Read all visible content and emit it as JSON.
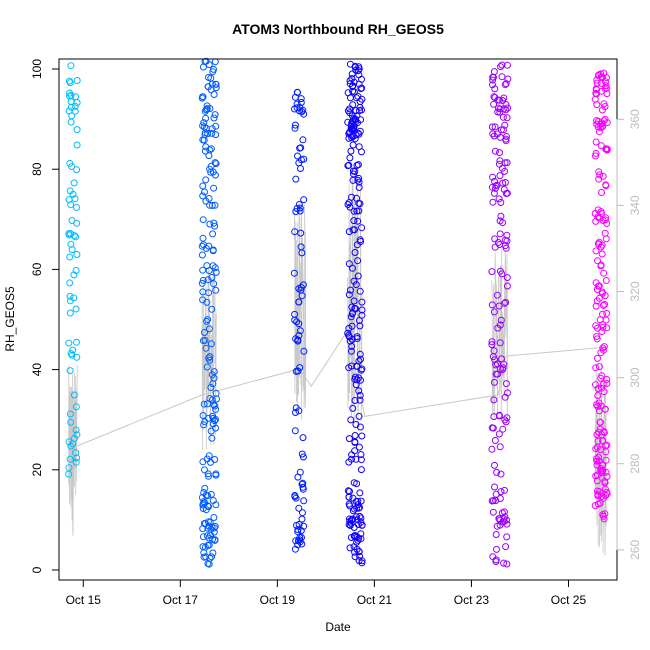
{
  "chart_data": {
    "type": "scatter",
    "title": "ATOM3 Northbound RH_GEOS5",
    "xlabel": "Date",
    "ylabel": "RH_GEOS5",
    "x_axis": {
      "unit": "day of October 2017",
      "range": [
        14.5,
        26.0
      ],
      "ticks": [
        15,
        17,
        19,
        21,
        23,
        25
      ],
      "tick_labels": [
        "Oct 15",
        "Oct 17",
        "Oct 19",
        "Oct 21",
        "Oct 23",
        "Oct 25"
      ]
    },
    "y_axis": {
      "range": [
        -2,
        102
      ],
      "ticks": [
        0,
        20,
        40,
        60,
        80,
        100
      ],
      "tick_labels": [
        "0",
        "20",
        "40",
        "60",
        "80",
        "100"
      ]
    },
    "y2_axis": {
      "range": [
        253,
        374
      ],
      "ticks": [
        260,
        280,
        300,
        320,
        340,
        360
      ],
      "tick_labels": [
        "260",
        "280",
        "300",
        "320",
        "340",
        "360"
      ],
      "color": "#bdbdbd"
    },
    "grid": false,
    "legend": "none",
    "marker": "open-circle",
    "color_gradient": [
      "#00bfff",
      "#0000ff",
      "#ff00ff"
    ],
    "segments": [
      {
        "x": [
          14.7,
          14.88
        ],
        "y_min": 19,
        "y_max": 101,
        "count": 70
      },
      {
        "x": [
          17.45,
          17.75
        ],
        "y_min": 1,
        "y_max": 102,
        "count": 190
      },
      {
        "x": [
          19.35,
          19.55
        ],
        "y_min": 4,
        "y_max": 98,
        "count": 90
      },
      {
        "x": [
          20.45,
          20.75
        ],
        "y_min": 1,
        "y_max": 101,
        "count": 230
      },
      {
        "x": [
          23.42,
          23.75
        ],
        "y_min": 1,
        "y_max": 101,
        "count": 160
      },
      {
        "x": [
          25.55,
          25.8
        ],
        "y_min": 10,
        "y_max": 101,
        "count": 180
      }
    ],
    "secondary_line": {
      "color": "#c8c8c8",
      "points": [
        {
          "x": 14.85,
          "y": 284
        },
        {
          "x": 17.45,
          "y": 296
        },
        {
          "x": 19.45,
          "y": 302
        },
        {
          "x": 19.7,
          "y": 298
        },
        {
          "x": 20.45,
          "y": 311
        },
        {
          "x": 20.8,
          "y": 291
        },
        {
          "x": 23.55,
          "y": 296
        },
        {
          "x": 23.7,
          "y": 305
        },
        {
          "x": 25.7,
          "y": 307
        }
      ],
      "bursts": [
        {
          "x": [
            14.7,
            14.88
          ],
          "y_min": 263,
          "y_max": 303
        },
        {
          "x": [
            17.45,
            17.75
          ],
          "y_min": 283,
          "y_max": 326
        },
        {
          "x": [
            19.35,
            19.6
          ],
          "y_min": 290,
          "y_max": 341
        },
        {
          "x": [
            20.45,
            20.75
          ],
          "y_min": 288,
          "y_max": 350
        },
        {
          "x": [
            23.42,
            23.75
          ],
          "y_min": 290,
          "y_max": 330
        },
        {
          "x": [
            25.55,
            25.8
          ],
          "y_min": 258,
          "y_max": 305
        }
      ]
    }
  }
}
